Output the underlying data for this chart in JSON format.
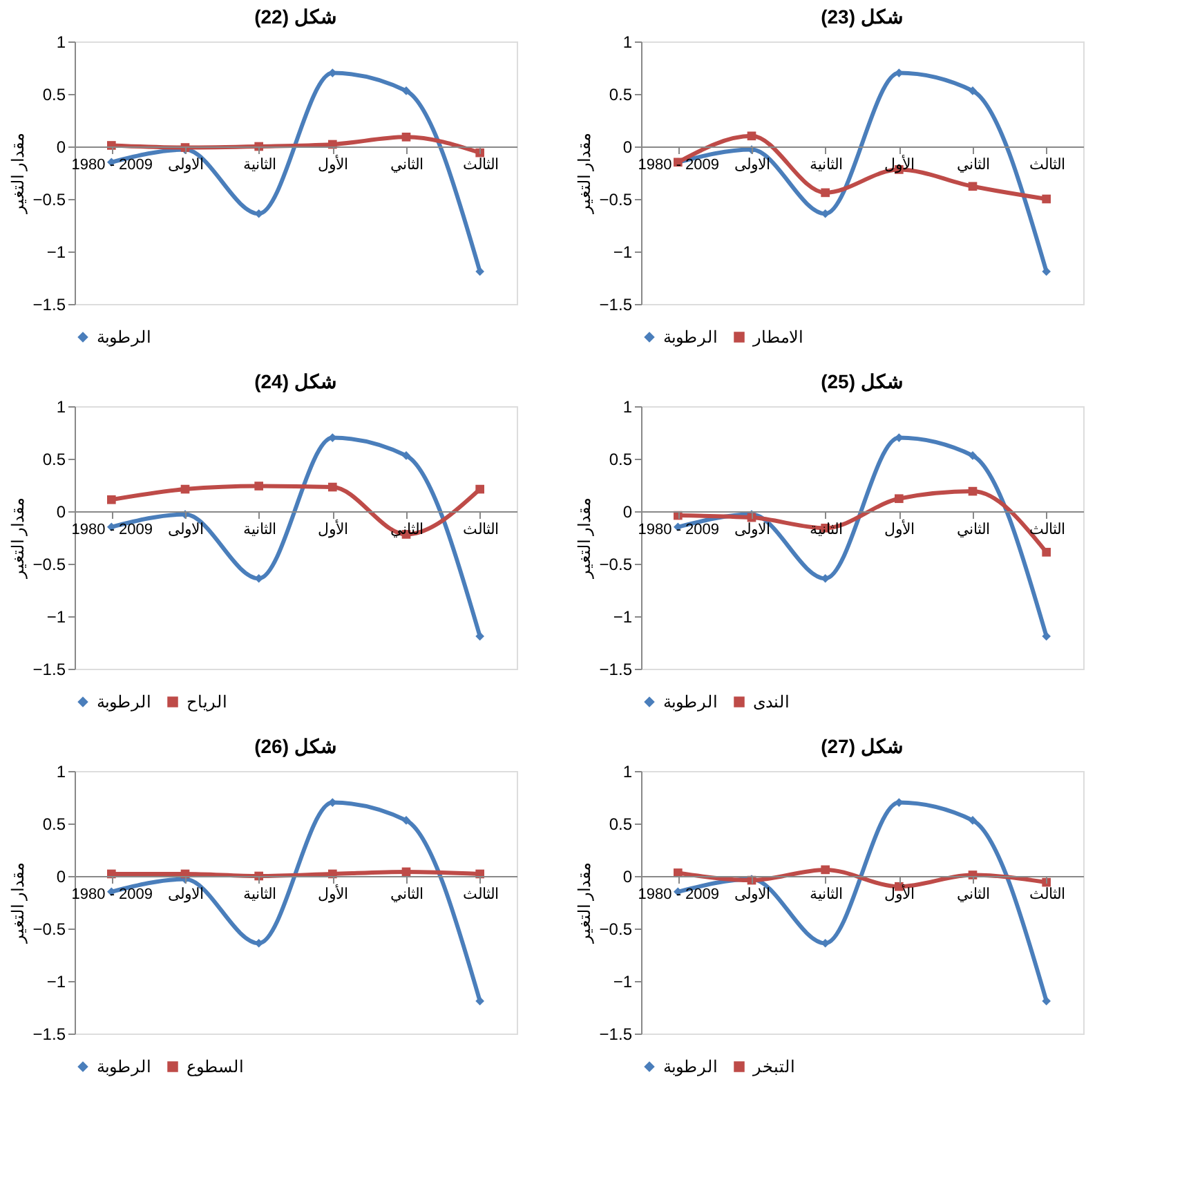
{
  "chart_data": [
    {
      "type": "line",
      "title": "شكل (22)",
      "ylabel": "مقدار التغير",
      "categories": [
        "1980 - 2009",
        "الاولى",
        "الثانية",
        "الأول",
        "الثاني",
        "الثالث"
      ],
      "ylim": [
        -1.5,
        1
      ],
      "yticks": [
        -1.5,
        -1,
        -0.5,
        0,
        0.5,
        1
      ],
      "grid": false,
      "legend": "bottom",
      "series": [
        {
          "name": "الرطوبة",
          "color": "#4a7ebb",
          "marker": "diamond",
          "values": [
            -0.15,
            -0.03,
            -0.64,
            0.7,
            0.53,
            -1.19
          ]
        },
        {
          "color": "#be4b48",
          "marker": "square",
          "values": [
            0.01,
            -0.01,
            0.0,
            0.02,
            0.09,
            -0.06
          ]
        }
      ]
    },
    {
      "type": "line",
      "title": "شكل (23)",
      "ylabel": "مقدار التغير",
      "categories": [
        "1980 - 2009",
        "الاولى",
        "الثانية",
        "الأول",
        "الثاني",
        "الثالث"
      ],
      "ylim": [
        -1.5,
        1
      ],
      "yticks": [
        -1.5,
        -1,
        -0.5,
        0,
        0.5,
        1
      ],
      "grid": false,
      "legend": "bottom",
      "series": [
        {
          "name": "الرطوبة",
          "color": "#4a7ebb",
          "marker": "diamond",
          "values": [
            -0.15,
            -0.03,
            -0.64,
            0.7,
            0.53,
            -1.19
          ]
        },
        {
          "name": "الامطار",
          "color": "#be4b48",
          "marker": "square",
          "values": [
            -0.15,
            0.1,
            -0.44,
            -0.22,
            -0.38,
            -0.5
          ]
        }
      ]
    },
    {
      "type": "line",
      "title": "شكل (24)",
      "ylabel": "مقدار التغير",
      "categories": [
        "1980 - 2009",
        "الاولى",
        "الثانية",
        "الأول",
        "الثاني",
        "الثالث"
      ],
      "ylim": [
        -1.5,
        1
      ],
      "yticks": [
        -1.5,
        -1,
        -0.5,
        0,
        0.5,
        1
      ],
      "grid": false,
      "legend": "bottom",
      "series": [
        {
          "name": "الرطوبة",
          "color": "#4a7ebb",
          "marker": "diamond",
          "values": [
            -0.15,
            -0.03,
            -0.64,
            0.7,
            0.53,
            -1.19
          ]
        },
        {
          "name": "الرياح",
          "color": "#be4b48",
          "marker": "square",
          "values": [
            0.11,
            0.21,
            0.24,
            0.23,
            -0.22,
            0.21
          ]
        }
      ]
    },
    {
      "type": "line",
      "title": "شكل (25)",
      "ylabel": "مقدار التغير",
      "categories": [
        "1980 - 2009",
        "الاولى",
        "الثانية",
        "الأول",
        "الثاني",
        "الثالث"
      ],
      "ylim": [
        -1.5,
        1
      ],
      "yticks": [
        -1.5,
        -1,
        -0.5,
        0,
        0.5,
        1
      ],
      "grid": false,
      "legend": "bottom",
      "series": [
        {
          "name": "الرطوبة",
          "color": "#4a7ebb",
          "marker": "diamond",
          "values": [
            -0.15,
            -0.03,
            -0.64,
            0.7,
            0.53,
            -1.19
          ]
        },
        {
          "name": "الندى",
          "color": "#be4b48",
          "marker": "square",
          "values": [
            -0.04,
            -0.06,
            -0.16,
            0.12,
            0.19,
            -0.39
          ]
        }
      ]
    },
    {
      "type": "line",
      "title": "شكل (26)",
      "ylabel": "مقدار التغير",
      "categories": [
        "1980 - 2009",
        "الاولى",
        "الثانية",
        "الأول",
        "الثاني",
        "الثالث"
      ],
      "ylim": [
        -1.5,
        1
      ],
      "yticks": [
        -1.5,
        -1,
        -0.5,
        0,
        0.5,
        1
      ],
      "grid": false,
      "legend": "bottom",
      "series": [
        {
          "name": "الرطوبة",
          "color": "#4a7ebb",
          "marker": "diamond",
          "values": [
            -0.15,
            -0.03,
            -0.64,
            0.7,
            0.53,
            -1.19
          ]
        },
        {
          "name": "السطوع",
          "color": "#be4b48",
          "marker": "square",
          "values": [
            0.02,
            0.02,
            0.0,
            0.02,
            0.04,
            0.02
          ]
        }
      ]
    },
    {
      "type": "line",
      "title": "شكل (27)",
      "ylabel": "مقدار التغير",
      "categories": [
        "1980 - 2009",
        "الاولى",
        "الثانية",
        "الأول",
        "الثاني",
        "الثالث"
      ],
      "ylim": [
        -1.5,
        1
      ],
      "yticks": [
        -1.5,
        -1,
        -0.5,
        0,
        0.5,
        1
      ],
      "grid": false,
      "legend": "bottom",
      "series": [
        {
          "name": "الرطوبة",
          "color": "#4a7ebb",
          "marker": "diamond",
          "values": [
            -0.15,
            -0.03,
            -0.64,
            0.7,
            0.53,
            -1.19
          ]
        },
        {
          "name": "التبخر",
          "color": "#be4b48",
          "marker": "square",
          "values": [
            0.03,
            -0.04,
            0.06,
            -0.1,
            0.01,
            -0.06
          ]
        }
      ]
    }
  ]
}
